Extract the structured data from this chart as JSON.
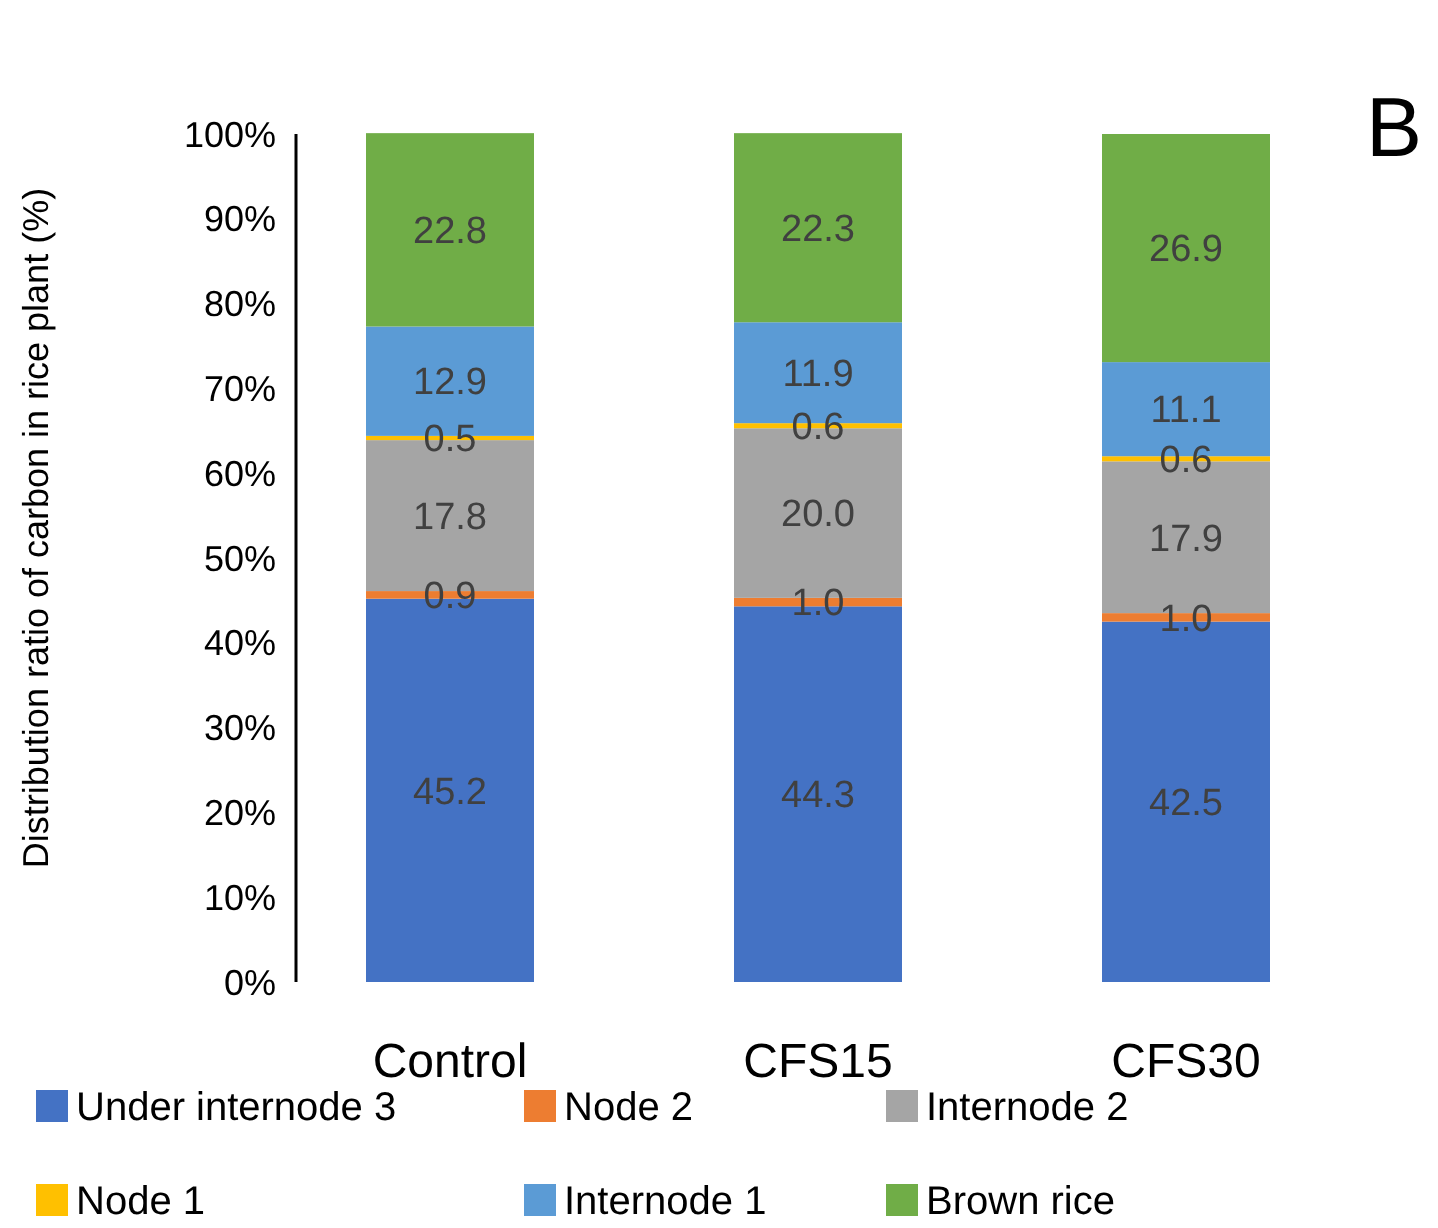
{
  "chart_data": {
    "type": "bar",
    "stacked": true,
    "ylabel": "Distribution ratio of carbon in rice plant (%)",
    "annotations": [
      "B"
    ],
    "categories": [
      "Control",
      "CFS15",
      "CFS30"
    ],
    "series": [
      {
        "name": "Under internode 3",
        "color": "#4472c4",
        "values": [
          45.2,
          44.3,
          42.5
        ],
        "value_labels": [
          "45.2",
          "44.3",
          "42.5"
        ]
      },
      {
        "name": "Node 2",
        "color": "#ed7d31",
        "values": [
          0.9,
          1.0,
          1.0
        ],
        "value_labels": [
          "0.9",
          "1.0",
          "1.0"
        ]
      },
      {
        "name": "Internode 2",
        "color": "#a5a5a5",
        "values": [
          17.8,
          20.0,
          17.9
        ],
        "value_labels": [
          "17.8",
          "20.0",
          "17.9"
        ]
      },
      {
        "name": "Node 1",
        "color": "#ffc000",
        "values": [
          0.5,
          0.6,
          0.6
        ],
        "value_labels": [
          "0.5",
          "0.6",
          "0.6"
        ]
      },
      {
        "name": "Internode 1",
        "color": "#5b9bd5",
        "values": [
          12.9,
          11.9,
          11.1
        ],
        "value_labels": [
          "12.9",
          "11.9",
          "11.1"
        ]
      },
      {
        "name": "Brown rice",
        "color": "#70ad47",
        "values": [
          22.8,
          22.3,
          26.9
        ],
        "value_labels": [
          "22.8",
          "22.3",
          "26.9"
        ]
      }
    ],
    "ylim": [
      0,
      100
    ],
    "yticks": [
      {
        "value": 0,
        "label": "0%"
      },
      {
        "value": 10,
        "label": "10%"
      },
      {
        "value": 20,
        "label": "20%"
      },
      {
        "value": 30,
        "label": "30%"
      },
      {
        "value": 40,
        "label": "40%"
      },
      {
        "value": 50,
        "label": "50%"
      },
      {
        "value": 60,
        "label": "60%"
      },
      {
        "value": 70,
        "label": "70%"
      },
      {
        "value": 80,
        "label": "80%"
      },
      {
        "value": 90,
        "label": "90%"
      },
      {
        "value": 100,
        "label": "100%"
      }
    ],
    "grid": false,
    "legend": "bottom"
  }
}
